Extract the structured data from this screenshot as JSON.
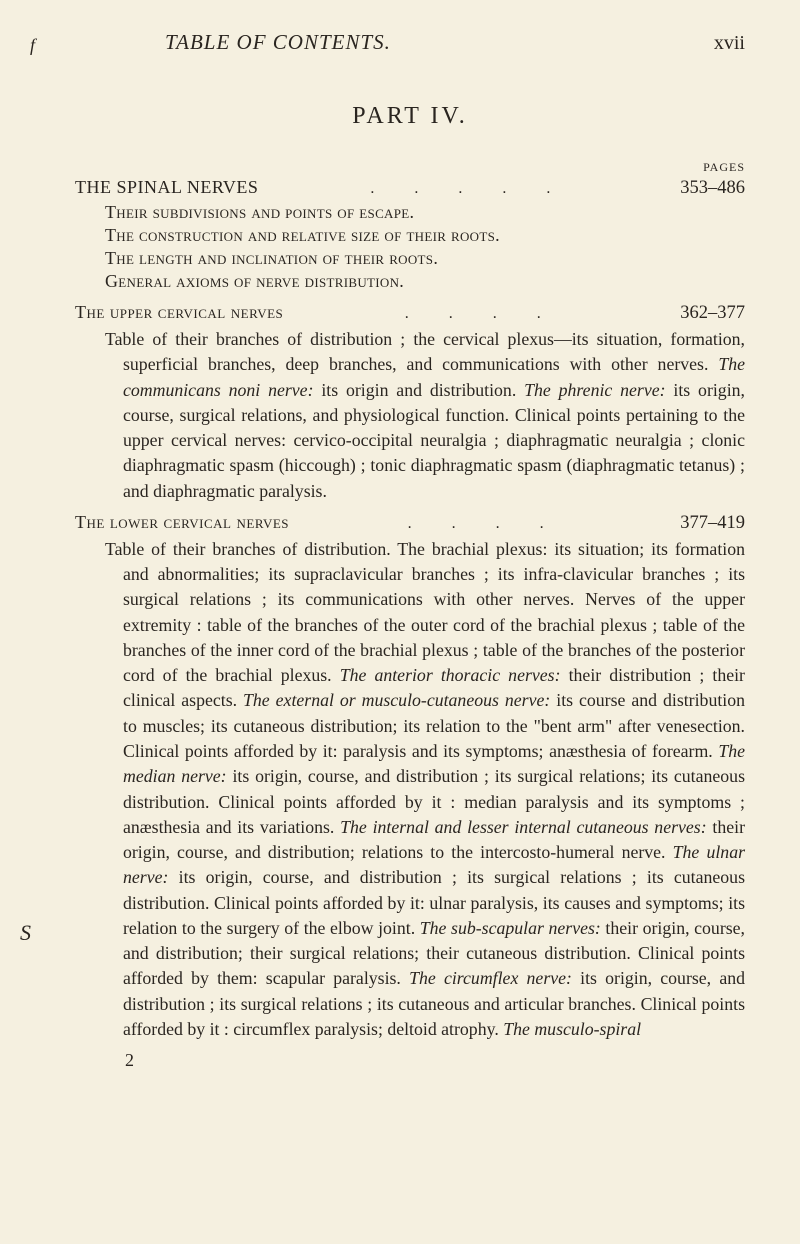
{
  "page_marker": "f",
  "header_title": "TABLE OF CONTENTS.",
  "page_number": "xvii",
  "part_title": "PART IV.",
  "pages_label": "PAGES",
  "margin_mark": "S",
  "spinal_nerves": {
    "title": "THE SPINAL NERVES",
    "dots": ". . . . .",
    "pages": "353–486",
    "subs": [
      "Their subdivisions and points of escape.",
      "The construction and relative size of their roots.",
      "The length and inclination of their roots.",
      "General axioms of nerve distribution."
    ]
  },
  "upper_cervical": {
    "title": "The upper cervical nerves",
    "dots": ". . . .",
    "pages": "362–377",
    "desc": "Table of their branches of distribution ; the cervical plexus—its situation, formation, superficial branches, deep branches, and communications with other nerves. <i>The communicans noni nerve:</i> its origin and distribution. <i>The phrenic nerve:</i> its origin, course, surgical relations, and physiological function. Clinical points pertaining to the upper cervical nerves: cervico-occipital neuralgia ; diaphragmatic neuralgia ; clonic diaphragmatic spasm (hiccough) ; tonic diaphragmatic spasm (diaphragmatic tetanus) ; and diaphragmatic paralysis."
  },
  "lower_cervical": {
    "title": "The lower cervical nerves",
    "dots": ". . . .",
    "pages": "377–419",
    "desc": "Table of their branches of distribution. The brachial plexus: its situation; its formation and abnormalities; its supraclavicular branches ; its infra-clavicular branches ; its surgical relations ; its communications with other nerves. Nerves of the upper extremity : table of the branches of the outer cord of the brachial plexus ; table of the branches of the inner cord of the brachial plexus ; table of the branches of the posterior cord of the brachial plexus. <i>The anterior thoracic nerves:</i> their distribution ; their clinical aspects. <i>The external or musculo-cutaneous nerve:</i> its course and distribution to muscles; its cutaneous distribution; its relation to the \"bent arm\" after venesection. Clinical points afforded by it: paralysis and its symptoms; anæsthesia of forearm. <i>The median nerve:</i> its origin, course, and distribution ; its surgical relations; its cutaneous distribution. Clinical points afforded by it : median paralysis and its symptoms ; anæsthesia and its variations. <i>The internal and lesser internal cutaneous nerves:</i> their origin, course, and distribution; relations to the intercosto-humeral nerve. <i>The ulnar nerve:</i> its origin, course, and distribution ; its surgical relations ; its cutaneous distribution. Clinical points afforded by it: ulnar paralysis, its causes and symptoms; its relation to the surgery of the elbow joint. <i>The sub-scapular nerves:</i> their origin, course, and distribution; their surgical relations; their cutaneous distribution. Clinical points afforded by them: scapular paralysis. <i>The circumflex nerve:</i> its origin, course, and distribution ; its surgical relations ; its cutaneous and articular branches. Clinical points afforded by it : circumflex paralysis; deltoid atrophy. <i>The musculo-spiral</i>",
    "footer_num": "2"
  }
}
